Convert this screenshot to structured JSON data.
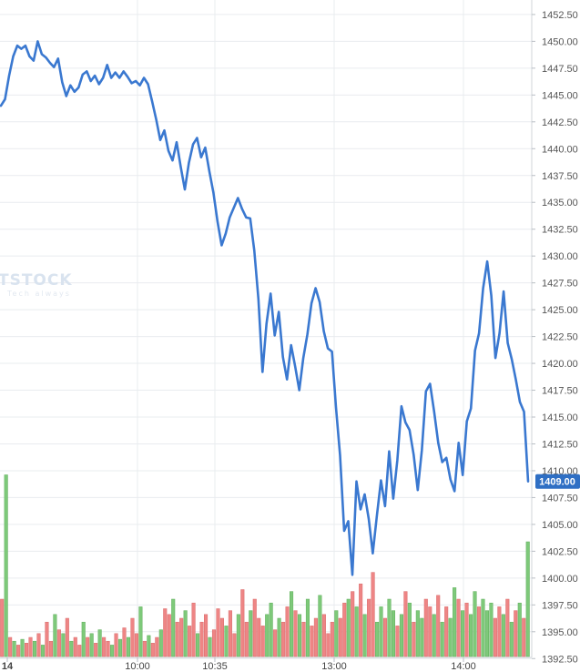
{
  "chart_data": {
    "type": "line",
    "series": [
      {
        "values": [
          1444.0,
          1444.6,
          1446.8,
          1448.6,
          1449.6,
          1449.3,
          1449.6,
          1448.6,
          1448.2,
          1450.0,
          1448.8,
          1448.5,
          1448.0,
          1447.6,
          1448.4,
          1446.2,
          1444.9,
          1445.9,
          1445.3,
          1445.7,
          1446.9,
          1447.2,
          1446.3,
          1446.8,
          1446.0,
          1446.6,
          1447.8,
          1446.6,
          1447.1,
          1446.6,
          1447.2,
          1446.7,
          1446.1,
          1446.3,
          1445.9,
          1446.6,
          1446.0,
          1444.4,
          1442.7,
          1440.8,
          1441.7,
          1439.8,
          1438.9,
          1440.6,
          1438.3,
          1436.2,
          1438.7,
          1440.4,
          1441.0,
          1439.2,
          1440.1,
          1437.9,
          1435.9,
          1433.2,
          1431.0,
          1432.1,
          1433.6,
          1434.5,
          1435.4,
          1434.4,
          1433.6,
          1433.5,
          1430.5,
          1426.0,
          1419.2,
          1423.7,
          1426.5,
          1422.6,
          1424.8,
          1420.6,
          1418.5,
          1421.7,
          1419.7,
          1417.5,
          1420.5,
          1422.7,
          1425.6,
          1427.0,
          1425.7,
          1423.0,
          1421.4,
          1421.1,
          1415.9,
          1411.4,
          1404.4,
          1405.3,
          1400.3,
          1409.0,
          1406.4,
          1407.8,
          1405.5,
          1402.3,
          1405.8,
          1409.1,
          1406.7,
          1411.8,
          1407.4,
          1411.0,
          1416.0,
          1414.5,
          1413.8,
          1411.5,
          1408.2,
          1411.9,
          1417.4,
          1418.1,
          1415.5,
          1412.6,
          1410.8,
          1411.2,
          1409.2,
          1408.1,
          1412.6,
          1409.6,
          1414.6,
          1415.8,
          1421.2,
          1422.8,
          1427.0,
          1429.5,
          1426.3,
          1420.5,
          1422.8,
          1426.7,
          1421.9,
          1420.4,
          1418.5,
          1416.4,
          1415.5,
          1409.0
        ]
      }
    ],
    "xticks": [
      "14",
      "10:00",
      "10:35",
      "13:00",
      "14:00"
    ],
    "yticks": [
      "1392.50",
      "1395.00",
      "1397.50",
      "1400.00",
      "1402.50",
      "1405.00",
      "1407.50",
      "1410.00",
      "1412.50",
      "1415.00",
      "1417.50",
      "1420.00",
      "1422.50",
      "1425.00",
      "1427.50",
      "1430.00",
      "1432.50",
      "1435.00",
      "1437.50",
      "1440.00",
      "1442.50",
      "1445.00",
      "1447.50",
      "1450.00",
      "1452.50"
    ],
    "ylim": [
      1391.25,
      1453.85
    ],
    "last_price": "1409.00",
    "volume": {
      "values": [
        0.3,
        0.95,
        0.1,
        0.08,
        0.06,
        0.09,
        0.07,
        0.1,
        0.08,
        0.12,
        0.06,
        0.18,
        0.08,
        0.22,
        0.14,
        0.12,
        0.2,
        0.08,
        0.1,
        0.06,
        0.18,
        0.1,
        0.12,
        0.07,
        0.14,
        0.1,
        0.08,
        0.06,
        0.12,
        0.09,
        0.15,
        0.1,
        0.2,
        0.12,
        0.26,
        0.08,
        0.11,
        0.07,
        0.1,
        0.14,
        0.25,
        0.22,
        0.3,
        0.18,
        0.2,
        0.24,
        0.16,
        0.28,
        0.12,
        0.18,
        0.22,
        0.1,
        0.14,
        0.25,
        0.2,
        0.16,
        0.24,
        0.12,
        0.22,
        0.35,
        0.18,
        0.24,
        0.3,
        0.2,
        0.16,
        0.22,
        0.28,
        0.14,
        0.2,
        0.18,
        0.26,
        0.34,
        0.24,
        0.22,
        0.18,
        0.3,
        0.16,
        0.2,
        0.32,
        0.22,
        0.12,
        0.18,
        0.24,
        0.2,
        0.28,
        0.3,
        0.34,
        0.26,
        0.38,
        0.22,
        0.3,
        0.44,
        0.18,
        0.26,
        0.2,
        0.3,
        0.24,
        0.16,
        0.22,
        0.34,
        0.28,
        0.18,
        0.24,
        0.2,
        0.3,
        0.26,
        0.22,
        0.32,
        0.18,
        0.26,
        0.2,
        0.36,
        0.3,
        0.24,
        0.28,
        0.22,
        0.34,
        0.26,
        0.3,
        0.24,
        0.28,
        0.2,
        0.26,
        0.22,
        0.3,
        0.18,
        0.24,
        0.28,
        0.2,
        0.6
      ],
      "colors": [
        "red",
        "green",
        "red",
        "green",
        "red",
        "green",
        "red",
        "red",
        "green",
        "red",
        "green",
        "red",
        "red",
        "green",
        "red",
        "green",
        "red",
        "green",
        "red",
        "red",
        "green",
        "red",
        "green",
        "red",
        "green",
        "red",
        "red",
        "green",
        "red",
        "green",
        "red",
        "green",
        "red",
        "red",
        "green",
        "red",
        "green",
        "red",
        "red",
        "green",
        "red",
        "red",
        "green",
        "red",
        "red",
        "green",
        "red",
        "red",
        "green",
        "red",
        "red",
        "green",
        "red",
        "red",
        "red",
        "green",
        "red",
        "red",
        "green",
        "red",
        "red",
        "green",
        "red",
        "red",
        "red",
        "green",
        "green",
        "red",
        "green",
        "red",
        "red",
        "green",
        "red",
        "green",
        "red",
        "green",
        "red",
        "red",
        "green",
        "red",
        "red",
        "red",
        "green",
        "red",
        "red",
        "green",
        "red",
        "green",
        "red",
        "green",
        "red",
        "red",
        "green",
        "green",
        "red",
        "green",
        "green",
        "red",
        "green",
        "red",
        "green",
        "red",
        "green",
        "green",
        "red",
        "red",
        "green",
        "red",
        "green",
        "red",
        "green",
        "green",
        "red",
        "green",
        "red",
        "green",
        "green",
        "red",
        "green",
        "green",
        "green",
        "red",
        "red",
        "green",
        "red",
        "green",
        "red",
        "green",
        "red",
        "green"
      ]
    }
  },
  "colors": {
    "line": "#3a78d0",
    "up": "#7ec97a",
    "down": "#ee8585",
    "grid": "#e9ecef",
    "price_tag": "#2f6fc4"
  },
  "watermark": {
    "brand": "TSTOCK",
    "tagline": "Tech always"
  }
}
